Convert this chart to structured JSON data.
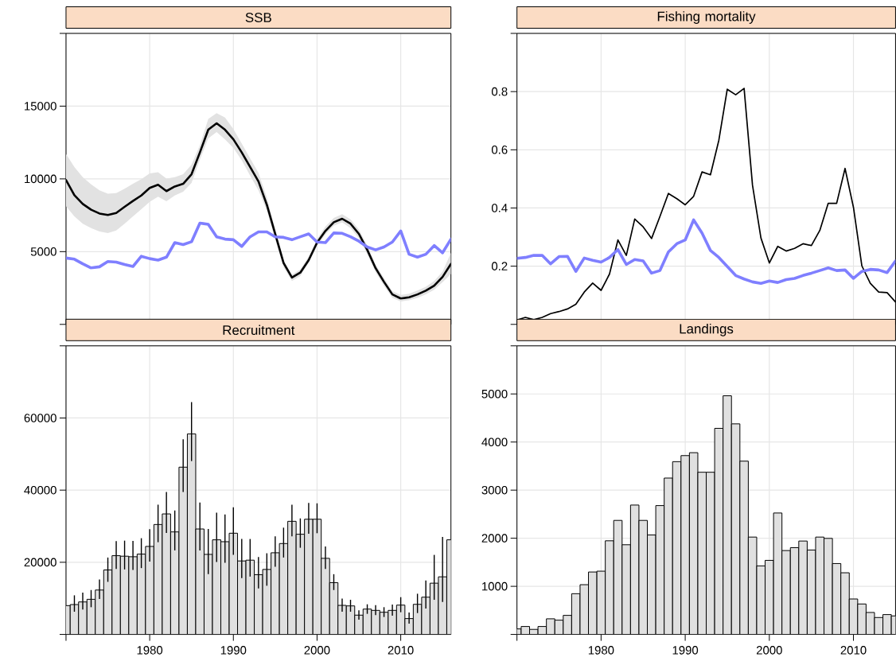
{
  "chart_data": [
    {
      "type": "line",
      "title": "SSB",
      "x": [
        1970,
        1971,
        1972,
        1973,
        1974,
        1975,
        1976,
        1977,
        1978,
        1979,
        1980,
        1981,
        1982,
        1983,
        1984,
        1985,
        1986,
        1987,
        1988,
        1989,
        1990,
        1991,
        1992,
        1993,
        1994,
        1995,
        1996,
        1997,
        1998,
        1999,
        2000,
        2001,
        2002,
        2003,
        2004,
        2005,
        2006,
        2007,
        2008,
        2009,
        2010,
        2011,
        2012,
        2013,
        2014,
        2015,
        2016
      ],
      "series": [
        {
          "color": "#000000",
          "values": [
            9920,
            8880,
            8280,
            7880,
            7620,
            7520,
            7660,
            8080,
            8480,
            8860,
            9380,
            9600,
            9160,
            9480,
            9660,
            10320,
            11820,
            13380,
            13820,
            13380,
            12720,
            11820,
            10820,
            9820,
            8220,
            6220,
            4220,
            3220,
            3560,
            4420,
            5620,
            6420,
            7020,
            7260,
            6920,
            6220,
            5120,
            3860,
            2920,
            2060,
            1780,
            1860,
            2060,
            2320,
            2660,
            3260,
            4160
          ],
          "lower": [
            8120,
            7420,
            6920,
            6620,
            6380,
            6280,
            6460,
            6920,
            7420,
            7920,
            8420,
            8780,
            8460,
            8860,
            9120,
            9720,
            11320,
            12780,
            13220,
            12720,
            12120,
            11280,
            10220,
            9220,
            7820,
            5820,
            3920,
            2980,
            3320,
            4220,
            5380,
            6180,
            6780,
            7020,
            6620,
            5920,
            4820,
            3580,
            2660,
            1820,
            1580,
            1660,
            1820,
            2060,
            2380,
            2900,
            3460
          ],
          "upper": [
            11720,
            10820,
            10120,
            9620,
            9220,
            8980,
            9020,
            9320,
            9660,
            9980,
            10380,
            10460,
            10020,
            10120,
            10320,
            10980,
            12320,
            14120,
            14520,
            14220,
            13420,
            12420,
            11420,
            10420,
            8720,
            6520,
            4420,
            3420,
            3780,
            4660,
            5860,
            6720,
            7320,
            7580,
            7220,
            6520,
            5420,
            4120,
            3180,
            2280,
            2020,
            2100,
            2320,
            2580,
            2980,
            3620,
            4920
          ]
        },
        {
          "color": "#7f7fff",
          "values": [
            4560,
            4480,
            4160,
            3880,
            3960,
            4320,
            4280,
            4120,
            3980,
            4680,
            4520,
            4420,
            4620,
            5620,
            5480,
            5680,
            6960,
            6880,
            6020,
            5860,
            5820,
            5360,
            6020,
            6360,
            6360,
            6020,
            5980,
            5820,
            6020,
            6220,
            5660,
            5620,
            6280,
            6260,
            6020,
            5720,
            5320,
            5120,
            5320,
            5660,
            6420,
            4820,
            4620,
            4820,
            5420,
            4920,
            5860
          ]
        }
      ],
      "xlim": [
        1970,
        2016
      ],
      "ylim": [
        0,
        20000
      ],
      "xticks": [
        1970,
        1980,
        1990,
        2000,
        2010
      ],
      "yticks": [
        {
          "value": 0,
          "label": null
        },
        5000,
        10000,
        15000,
        {
          "value": 20000,
          "label": null
        }
      ],
      "grid": true,
      "tick_labels": "y"
    },
    {
      "type": "line",
      "title": "Fishing mortality",
      "x": [
        1970,
        1971,
        1972,
        1973,
        1974,
        1975,
        1976,
        1977,
        1978,
        1979,
        1980,
        1981,
        1982,
        1983,
        1984,
        1985,
        1986,
        1987,
        1988,
        1989,
        1990,
        1991,
        1992,
        1993,
        1994,
        1995,
        1996,
        1997,
        1998,
        1999,
        2000,
        2001,
        2002,
        2003,
        2004,
        2005,
        2006,
        2007,
        2008,
        2009,
        2010,
        2011,
        2012,
        2013,
        2014,
        2015
      ],
      "series": [
        {
          "color": "#000000",
          "values": [
            0.015,
            0.024,
            0.016,
            0.024,
            0.037,
            0.044,
            0.053,
            0.069,
            0.111,
            0.142,
            0.117,
            0.173,
            0.29,
            0.237,
            0.362,
            0.335,
            0.295,
            0.371,
            0.45,
            0.432,
            0.411,
            0.44,
            0.524,
            0.514,
            0.633,
            0.808,
            0.789,
            0.811,
            0.478,
            0.297,
            0.211,
            0.268,
            0.252,
            0.261,
            0.277,
            0.271,
            0.323,
            0.416,
            0.416,
            0.536,
            0.402,
            0.201,
            0.141,
            0.111,
            0.109,
            0.077
          ]
        },
        {
          "color": "#7f7fff",
          "values": [
            0.227,
            0.23,
            0.237,
            0.237,
            0.208,
            0.233,
            0.234,
            0.182,
            0.228,
            0.22,
            0.214,
            0.23,
            0.257,
            0.206,
            0.223,
            0.218,
            0.176,
            0.185,
            0.249,
            0.277,
            0.29,
            0.359,
            0.314,
            0.254,
            0.23,
            0.199,
            0.168,
            0.156,
            0.146,
            0.141,
            0.149,
            0.144,
            0.154,
            0.158,
            0.168,
            0.176,
            0.185,
            0.194,
            0.185,
            0.187,
            0.158,
            0.182,
            0.189,
            0.187,
            0.178,
            0.218
          ]
        }
      ],
      "xlim": [
        1970,
        2015
      ],
      "ylim": [
        0,
        1
      ],
      "xticks": [
        1970,
        1980,
        1990,
        2000,
        2010
      ],
      "yticks": [
        {
          "value": 0,
          "label": null
        },
        0.2,
        0.4,
        0.6,
        0.8,
        {
          "value": 1,
          "label": null
        }
      ],
      "grid": true,
      "tick_labels": "y"
    },
    {
      "type": "bar",
      "title": "Recruitment",
      "x": [
        1970,
        1971,
        1972,
        1973,
        1974,
        1975,
        1976,
        1977,
        1978,
        1979,
        1980,
        1981,
        1982,
        1983,
        1984,
        1985,
        1986,
        1987,
        1988,
        1989,
        1990,
        1991,
        1992,
        1993,
        1994,
        1995,
        1996,
        1997,
        1998,
        1999,
        2000,
        2001,
        2002,
        2003,
        2004,
        2005,
        2006,
        2007,
        2008,
        2009,
        2010,
        2011,
        2012,
        2013,
        2014,
        2015,
        2016
      ],
      "values": [
        7990,
        8280,
        9010,
        9740,
        12310,
        17880,
        21830,
        21690,
        21540,
        22270,
        24400,
        30480,
        33410,
        28420,
        46370,
        55600,
        29230,
        22200,
        26230,
        25710,
        28060,
        20370,
        20590,
        16560,
        18020,
        22640,
        25200,
        31360,
        27770,
        31940,
        31940,
        21100,
        14360,
        8060,
        7910,
        5350,
        7030,
        6670,
        6150,
        6670,
        8130,
        4400,
        8350,
        10330,
        14210,
        15970,
        26230
      ],
      "errors": [
        null,
        [
          6300,
          10840
        ],
        [
          6890,
          11580
        ],
        [
          7550,
          12310
        ],
        [
          9820,
          15240
        ],
        [
          14580,
          21320
        ],
        [
          18170,
          25860
        ],
        [
          18020,
          26000
        ],
        [
          17880,
          25930
        ],
        [
          18390,
          26670
        ],
        [
          20220,
          29160
        ],
        [
          25570,
          35970
        ],
        [
          28130,
          39490
        ],
        [
          23300,
          34360
        ],
        [
          39490,
          54070
        ],
        [
          48060,
          64400
        ],
        [
          23300,
          36560
        ],
        [
          16700,
          29230
        ],
        [
          20070,
          33770
        ],
        [
          19850,
          33260
        ],
        [
          22050,
          35240
        ],
        [
          15600,
          26450
        ],
        [
          16040,
          26450
        ],
        [
          12750,
          21460
        ],
        [
          13500,
          22500
        ],
        [
          18750,
          27180
        ],
        [
          21320,
          29600
        ],
        [
          27180,
          35970
        ],
        [
          24030,
          32160
        ],
        [
          27910,
          36480
        ],
        [
          28060,
          36340
        ],
        [
          18170,
          24400
        ],
        [
          12310,
          16700
        ],
        [
          6300,
          9960
        ],
        [
          6300,
          9600
        ],
        [
          4100,
          6670
        ],
        [
          5710,
          8350
        ],
        [
          5350,
          8130
        ],
        [
          4840,
          7550
        ],
        [
          5200,
          8280
        ],
        [
          6150,
          10330
        ],
        [
          3000,
          6080
        ],
        [
          5930,
          11280
        ],
        [
          7180,
          14950
        ],
        [
          9600,
          22050
        ],
        [
          9010,
          27030
        ],
        null
      ],
      "color": "#e0e0e0",
      "xlim": [
        1970,
        2016
      ],
      "ylim": [
        0,
        80000
      ],
      "xticks": [
        {
          "value": 1970,
          "label": null
        },
        1980,
        1990,
        2000,
        2010
      ],
      "yticks": [
        {
          "value": 0,
          "label": null
        },
        20000,
        40000,
        60000,
        {
          "value": 80000,
          "label": null
        }
      ],
      "grid": true
    },
    {
      "type": "bar",
      "title": "Landings",
      "x": [
        1970,
        1971,
        1972,
        1973,
        1974,
        1975,
        1976,
        1977,
        1978,
        1979,
        1980,
        1981,
        1982,
        1983,
        1984,
        1985,
        1986,
        1987,
        1988,
        1989,
        1990,
        1991,
        1992,
        1993,
        1994,
        1995,
        1996,
        1997,
        1998,
        1999,
        2000,
        2001,
        2002,
        2003,
        2004,
        2005,
        2006,
        2007,
        2008,
        2009,
        2010,
        2011,
        2012,
        2013,
        2014,
        2015
      ],
      "values": [
        115,
        165,
        105,
        165,
        325,
        297,
        396,
        847,
        1034,
        1298,
        1315,
        1947,
        2371,
        1865,
        2690,
        2371,
        2068,
        2679,
        3251,
        3592,
        3718,
        3779,
        3372,
        3372,
        4285,
        4962,
        4378,
        3603,
        2024,
        1425,
        1540,
        2525,
        1744,
        1804,
        1942,
        1755,
        2024,
        1997,
        1474,
        1282,
        737,
        633,
        457,
        352,
        413,
        385
      ],
      "color": "#e0e0e0",
      "xlim": [
        1970,
        2015
      ],
      "ylim": [
        0,
        6000
      ],
      "xticks": [
        {
          "value": 1970,
          "label": null
        },
        1980,
        1990,
        2000,
        2010
      ],
      "yticks": [
        {
          "value": 0,
          "label": null
        },
        1000,
        2000,
        3000,
        4000,
        5000,
        {
          "value": 6000,
          "label": null
        }
      ],
      "grid": true
    }
  ]
}
